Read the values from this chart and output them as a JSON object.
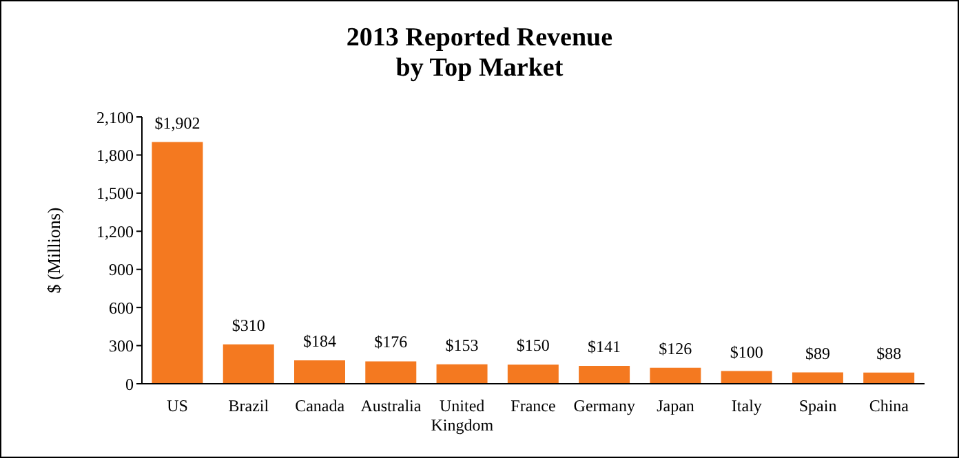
{
  "chart_data": {
    "type": "bar",
    "title": "2013 Reported Revenue\nby Top Market",
    "ylabel": "$ (Millions)",
    "categories": [
      "US",
      "Brazil",
      "Canada",
      "Australia",
      "United Kingdom",
      "France",
      "Germany",
      "Japan",
      "Italy",
      "Spain",
      "China"
    ],
    "values": [
      1902,
      310,
      184,
      176,
      153,
      150,
      141,
      126,
      100,
      89,
      88
    ],
    "value_labels": [
      "$1,902",
      "$310",
      "$184",
      "$176",
      "$153",
      "$150",
      "$141",
      "$126",
      "$100",
      "$89",
      "$88"
    ],
    "color": "#f47920",
    "ylim": [
      0,
      2100
    ],
    "yticks": [
      0,
      300,
      600,
      900,
      {
        "value": 1200,
        "label": "1,200"
      },
      {
        "value": 1500,
        "label": "1,500"
      },
      {
        "value": 1800,
        "label": "1,800"
      },
      {
        "value": 2100,
        "label": "2,100"
      }
    ],
    "grid": false,
    "legend": false
  }
}
